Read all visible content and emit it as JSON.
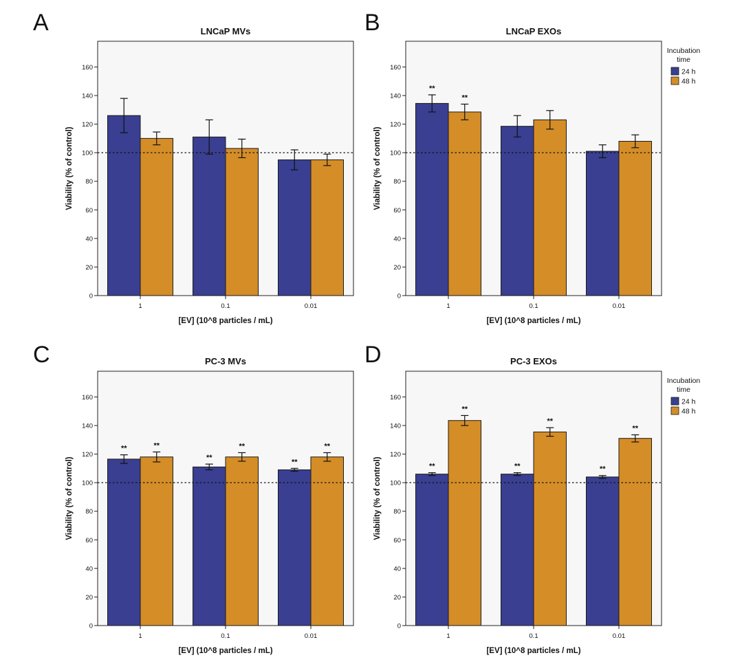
{
  "colors": {
    "series_24h": "#3a3f91",
    "series_48h": "#d48d27",
    "plot_bg": "#f7f7f7",
    "axis": "#222222"
  },
  "legend": {
    "title_line1": "Incubation",
    "title_line2": "time",
    "items": [
      "24 h",
      "48 h"
    ]
  },
  "chart_data": [
    {
      "panel": "A",
      "type": "bar",
      "title": "LNCaP MVs",
      "xlabel": "[EV] (10^8 particles / mL)",
      "ylabel": "Viability (% of control)",
      "ylim": [
        0,
        178
      ],
      "yticks": [
        0,
        20,
        40,
        60,
        80,
        100,
        120,
        140,
        160
      ],
      "reference_line": 100,
      "categories": [
        "1",
        "0.1",
        "0.01"
      ],
      "series": [
        {
          "name": "24 h",
          "values": [
            126,
            111,
            95
          ],
          "errors": [
            12,
            12,
            7
          ],
          "sig": [
            "",
            "",
            ""
          ]
        },
        {
          "name": "48 h",
          "values": [
            110,
            103,
            95
          ],
          "errors": [
            4.5,
            6.5,
            4
          ],
          "sig": [
            "",
            "",
            ""
          ]
        }
      ]
    },
    {
      "panel": "B",
      "type": "bar",
      "title": "LNCaP EXOs",
      "xlabel": "[EV] (10^8 particles / mL)",
      "ylabel": "Viability (% of control)",
      "ylim": [
        0,
        178
      ],
      "yticks": [
        0,
        20,
        40,
        60,
        80,
        100,
        120,
        140,
        160
      ],
      "reference_line": 100,
      "categories": [
        "1",
        "0.1",
        "0.01"
      ],
      "series": [
        {
          "name": "24 h",
          "values": [
            134.5,
            118.5,
            101
          ],
          "errors": [
            6,
            7.5,
            4.5
          ],
          "sig": [
            "**",
            "",
            ""
          ]
        },
        {
          "name": "48 h",
          "values": [
            128.5,
            123,
            108
          ],
          "errors": [
            5.5,
            6.5,
            4.5
          ],
          "sig": [
            "**",
            "",
            ""
          ]
        }
      ]
    },
    {
      "panel": "C",
      "type": "bar",
      "title": "PC-3 MVs",
      "xlabel": "[EV] (10^8 particles / mL)",
      "ylabel": "Viability (% of control)",
      "ylim": [
        0,
        178
      ],
      "yticks": [
        0,
        20,
        40,
        60,
        80,
        100,
        120,
        140,
        160
      ],
      "reference_line": 100,
      "categories": [
        "1",
        "0.1",
        "0.01"
      ],
      "series": [
        {
          "name": "24 h",
          "values": [
            116.5,
            111,
            109
          ],
          "errors": [
            3,
            2,
            1
          ],
          "sig": [
            "**",
            "**",
            "**"
          ]
        },
        {
          "name": "48 h",
          "values": [
            118,
            118,
            118
          ],
          "errors": [
            3.5,
            3,
            3
          ],
          "sig": [
            "**",
            "**",
            "**"
          ]
        }
      ]
    },
    {
      "panel": "D",
      "type": "bar",
      "title": "PC-3 EXOs",
      "xlabel": "[EV] (10^8 particles / mL)",
      "ylabel": "Viability (% of control)",
      "ylim": [
        0,
        178
      ],
      "yticks": [
        0,
        20,
        40,
        60,
        80,
        100,
        120,
        140,
        160
      ],
      "reference_line": 100,
      "categories": [
        "1",
        "0.1",
        "0.01"
      ],
      "series": [
        {
          "name": "24 h",
          "values": [
            106,
            106,
            104
          ],
          "errors": [
            1,
            1,
            1
          ],
          "sig": [
            "**",
            "**",
            "**"
          ]
        },
        {
          "name": "48 h",
          "values": [
            143.5,
            135.5,
            131
          ],
          "errors": [
            3.5,
            3,
            2.5
          ],
          "sig": [
            "**",
            "**",
            "**"
          ]
        }
      ]
    }
  ]
}
